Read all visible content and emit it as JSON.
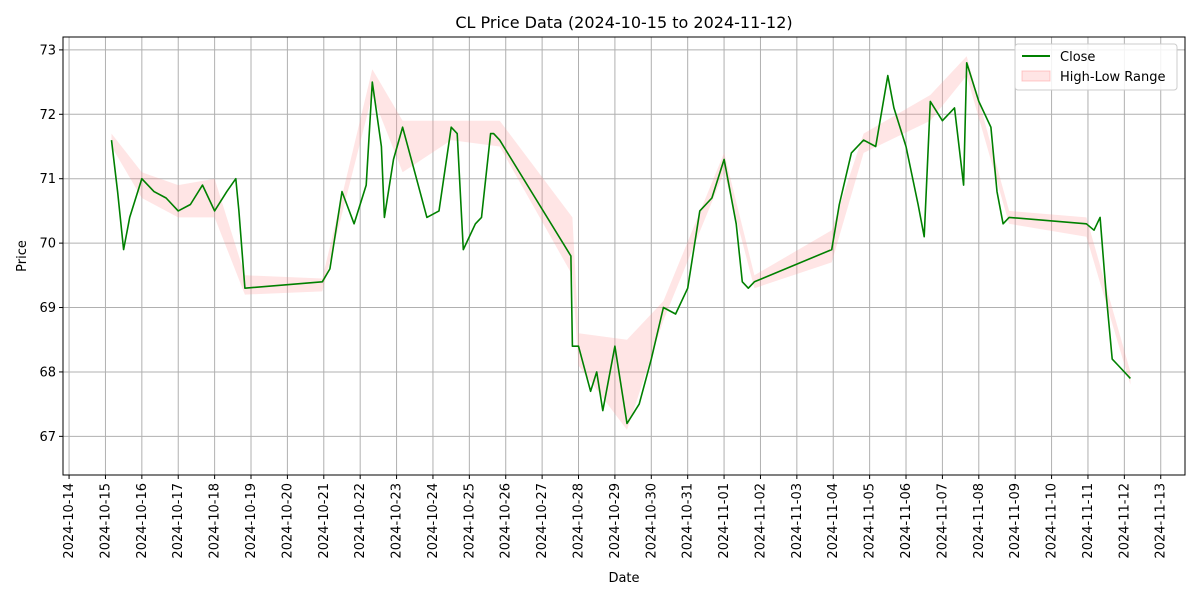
{
  "chart_data": {
    "type": "line",
    "title": "CL Price Data (2024-10-15 to 2024-11-12)",
    "xlabel": "Date",
    "ylabel": "Price",
    "xlim": [
      "2024-10-13 20:00",
      "2024-11-13 16:00"
    ],
    "ylim": [
      66.4,
      73.2
    ],
    "grid": true,
    "legend_position": "top-right",
    "x_ticks": [
      "2024-10-14",
      "2024-10-15",
      "2024-10-16",
      "2024-10-17",
      "2024-10-18",
      "2024-10-19",
      "2024-10-20",
      "2024-10-21",
      "2024-10-22",
      "2024-10-23",
      "2024-10-24",
      "2024-10-25",
      "2024-10-26",
      "2024-10-27",
      "2024-10-28",
      "2024-10-29",
      "2024-10-30",
      "2024-10-31",
      "2024-11-01",
      "2024-11-02",
      "2024-11-03",
      "2024-11-04",
      "2024-11-05",
      "2024-11-06",
      "2024-11-07",
      "2024-11-08",
      "2024-11-09",
      "2024-11-10",
      "2024-11-11",
      "2024-11-12",
      "2024-11-13"
    ],
    "y_ticks": [
      67,
      68,
      69,
      70,
      71,
      72,
      73
    ],
    "series": [
      {
        "name": "Close",
        "color": "#008000",
        "x": [
          "2024-10-15 04:00",
          "2024-10-15 08:00",
          "2024-10-15 12:00",
          "2024-10-15 16:00",
          "2024-10-16 00:00",
          "2024-10-16 08:00",
          "2024-10-16 16:00",
          "2024-10-17 00:00",
          "2024-10-17 08:00",
          "2024-10-17 16:00",
          "2024-10-18 00:00",
          "2024-10-18 08:00",
          "2024-10-18 14:00",
          "2024-10-18 16:00",
          "2024-10-18 20:00",
          "2024-10-20 23:00",
          "2024-10-21 04:00",
          "2024-10-21 12:00",
          "2024-10-21 20:00",
          "2024-10-22 04:00",
          "2024-10-22 08:00",
          "2024-10-22 14:00",
          "2024-10-22 16:00",
          "2024-10-22 22:00",
          "2024-10-23 04:00",
          "2024-10-23 12:00",
          "2024-10-23 20:00",
          "2024-10-24 04:00",
          "2024-10-24 12:00",
          "2024-10-24 16:00",
          "2024-10-24 20:00",
          "2024-10-25 04:00",
          "2024-10-25 08:00",
          "2024-10-25 14:00",
          "2024-10-25 16:00",
          "2024-10-25 20:00",
          "2024-10-27 19:00",
          "2024-10-27 20:00",
          "2024-10-28 00:00",
          "2024-10-28 08:00",
          "2024-10-28 12:00",
          "2024-10-28 16:00",
          "2024-10-29 00:00",
          "2024-10-29 08:00",
          "2024-10-29 16:00",
          "2024-10-30 00:00",
          "2024-10-30 08:00",
          "2024-10-30 16:00",
          "2024-10-31 00:00",
          "2024-10-31 08:00",
          "2024-10-31 16:00",
          "2024-11-01 00:00",
          "2024-11-01 08:00",
          "2024-11-01 12:00",
          "2024-11-01 16:00",
          "2024-11-01 20:00",
          "2024-11-03 23:00",
          "2024-11-04 04:00",
          "2024-11-04 12:00",
          "2024-11-04 20:00",
          "2024-11-05 04:00",
          "2024-11-05 12:00",
          "2024-11-05 16:00",
          "2024-11-06 00:00",
          "2024-11-06 08:00",
          "2024-11-06 12:00",
          "2024-11-06 16:00",
          "2024-11-07 00:00",
          "2024-11-07 08:00",
          "2024-11-07 14:00",
          "2024-11-07 16:00",
          "2024-11-08 00:00",
          "2024-11-08 08:00",
          "2024-11-08 12:00",
          "2024-11-08 16:00",
          "2024-11-08 20:00",
          "2024-11-10 23:00",
          "2024-11-11 04:00",
          "2024-11-11 08:00",
          "2024-11-11 12:00",
          "2024-11-11 16:00",
          "2024-11-11 20:00",
          "2024-11-12 04:00"
        ],
        "values": [
          71.6,
          70.8,
          69.9,
          70.4,
          71.0,
          70.8,
          70.7,
          70.5,
          70.6,
          70.9,
          70.5,
          70.8,
          71.0,
          70.5,
          69.3,
          69.4,
          69.6,
          70.8,
          70.3,
          70.9,
          72.5,
          71.5,
          70.4,
          71.3,
          71.8,
          71.1,
          70.4,
          70.5,
          71.8,
          71.7,
          69.9,
          70.3,
          70.4,
          71.7,
          71.7,
          71.6,
          69.8,
          68.4,
          68.4,
          67.7,
          68.0,
          67.4,
          68.4,
          67.2,
          67.5,
          68.2,
          69.0,
          68.9,
          69.3,
          70.5,
          70.7,
          71.3,
          70.3,
          69.4,
          69.3,
          69.4,
          69.9,
          70.6,
          71.4,
          71.6,
          71.5,
          72.6,
          72.1,
          71.5,
          70.6,
          70.1,
          72.2,
          71.9,
          72.1,
          70.9,
          72.8,
          72.2,
          71.8,
          70.8,
          70.3,
          70.4,
          70.3,
          70.2,
          70.4,
          69.2,
          68.2,
          68.1,
          67.9
        ]
      },
      {
        "name": "High-Low Range",
        "color": "#ff9999",
        "x": [
          "2024-10-15 04:00",
          "2024-10-16 00:00",
          "2024-10-17 00:00",
          "2024-10-18 00:00",
          "2024-10-18 20:00",
          "2024-10-20 23:00",
          "2024-10-22 08:00",
          "2024-10-23 04:00",
          "2024-10-24 12:00",
          "2024-10-25 20:00",
          "2024-10-27 20:00",
          "2024-10-28 00:00",
          "2024-10-29 08:00",
          "2024-10-30 08:00",
          "2024-11-01 00:00",
          "2024-11-01 20:00",
          "2024-11-03 23:00",
          "2024-11-04 20:00",
          "2024-11-06 16:00",
          "2024-11-07 16:00",
          "2024-11-08 20:00",
          "2024-11-10 23:00",
          "2024-11-12 04:00"
        ],
        "high": [
          71.7,
          71.1,
          70.9,
          71.0,
          69.5,
          69.45,
          72.7,
          71.9,
          71.9,
          71.9,
          70.4,
          68.6,
          68.5,
          69.1,
          71.4,
          69.5,
          70.2,
          71.7,
          72.3,
          72.9,
          70.5,
          70.4,
          68.0
        ],
        "low": [
          71.5,
          70.7,
          70.4,
          70.4,
          69.2,
          69.25,
          72.3,
          71.1,
          71.6,
          71.5,
          69.5,
          68.1,
          67.1,
          68.8,
          71.1,
          69.3,
          69.7,
          71.4,
          71.9,
          72.6,
          70.3,
          70.1,
          67.8
        ]
      }
    ]
  }
}
